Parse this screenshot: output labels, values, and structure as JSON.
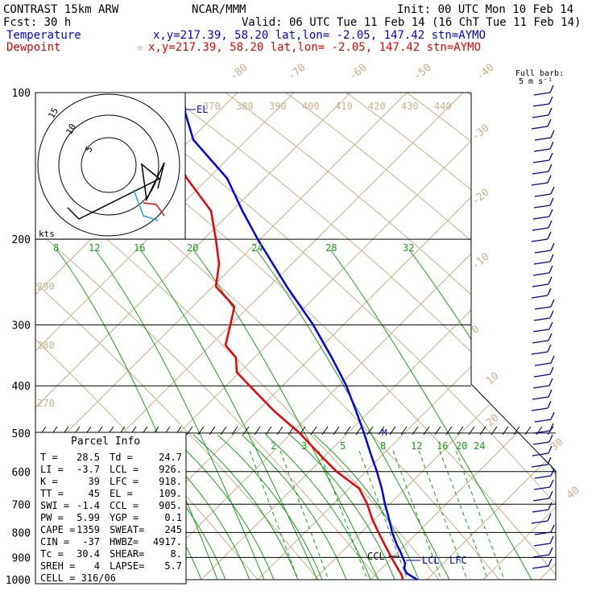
{
  "header": {
    "title": "CONTRAST 15km ARW",
    "center": "NCAR/MMM",
    "init": "Init: 00 UTC Mon 10 Feb 14",
    "fcst": "Fcst:   30 h",
    "valid": "Valid: 06 UTC Tue 11 Feb 14 (16 ChT Tue 11 Feb 14)",
    "temp_label": "Temperature",
    "temp_info": "x,y=217.39, 58.20    lat,lon= -2.05, 147.42   stn=AYMO",
    "dew_label": "Dewpoint",
    "dew_marker": "☆",
    "dew_info": "x,y=217.39, 58.20    lat,lon= -2.05, 147.42   stn=AYMO",
    "barb_label_1": "Full barb:",
    "barb_label_2": "5 m s⁻¹"
  },
  "colors": {
    "temperature": "#0000ee",
    "dewpoint": "#ee0000",
    "isotherm": "#c8b08c",
    "mixing_ratio": "#16a316",
    "parcel_wind": "#20a0e0"
  },
  "annotations": {
    "el": "EL",
    "ccl": "CCL",
    "lcl": "LCL",
    "lfc": "LFC",
    "m": "M",
    "hodo_units": "kts",
    "hodo_rings": [
      "15",
      "10",
      "5"
    ]
  },
  "axes": {
    "pressure_ticks": [
      "100",
      "200",
      "300",
      "400",
      "500",
      "600",
      "700",
      "800",
      "900",
      "1000"
    ],
    "isotherm_top": [
      "-80",
      "-70",
      "-60",
      "-50",
      "-40"
    ],
    "isotherm_right": [
      "-30",
      "-20",
      "-10",
      "0",
      "10",
      "20",
      "30",
      "40"
    ],
    "theta_top": [
      "370",
      "380",
      "390",
      "400",
      "410",
      "420",
      "430",
      "440"
    ],
    "theta_left": [
      "290",
      "280",
      "270"
    ],
    "mixing_upper": [
      "8",
      "12",
      "16",
      "20",
      "24",
      "28",
      "32"
    ],
    "mixing_lower": [
      "2",
      "3",
      "5",
      "8",
      "12",
      "16",
      "20",
      "24"
    ]
  },
  "parcel_info": {
    "title": "Parcel Info",
    "rows": [
      [
        "T   =",
        "28.5",
        "Td =",
        "24.7"
      ],
      [
        "LI  =",
        "-3.7",
        "LCL =",
        "926."
      ],
      [
        "K   =",
        "39",
        "LFC =",
        "918."
      ],
      [
        "TT  =",
        "45",
        "EL  =",
        "109."
      ],
      [
        "SWI =",
        "-1.4",
        "CCL =",
        "905."
      ],
      [
        "PW  =",
        "5.99",
        "YGP =",
        "0.1"
      ],
      [
        "CAPE =",
        "1359",
        "SWEAT=",
        "245"
      ],
      [
        "CIN =",
        "-37",
        "HWBZ=",
        "4917."
      ],
      [
        "Tc  =",
        "30.4",
        "SHEAR=",
        "8."
      ],
      [
        "SREH =",
        "4",
        "LAPSE=",
        "5.7"
      ]
    ],
    "cell": "CELL = 316/06"
  },
  "chart_data": {
    "type": "line",
    "title": "CONTRAST 15km ARW",
    "ylabel": "",
    "y_scale": "log-pressure (hPa)",
    "ylim": [
      1000,
      100
    ],
    "series": [
      {
        "name": "Temperature",
        "pressure": [
          1000,
          970,
          950,
          925,
          900,
          875,
          850,
          800,
          750,
          700,
          650,
          600,
          550,
          500,
          450,
          400,
          350,
          300,
          250,
          200,
          175,
          150,
          125,
          110,
          100
        ],
        "x": [
          518,
          505,
          502,
          503,
          500,
          497,
          493,
          487,
          483,
          478,
          474,
          468,
          460,
          452,
          442,
          430,
          412,
          389,
          356,
          320,
          301,
          282,
          240,
          230,
          228
        ]
      },
      {
        "name": "Dewpoint",
        "pressure": [
          1000,
          980,
          950,
          925,
          900,
          850,
          800,
          750,
          700,
          650,
          600,
          560,
          500,
          450,
          400,
          375,
          350,
          330,
          300,
          275,
          250,
          225,
          200,
          175,
          150,
          130,
          110,
          100
        ],
        "x": [
          500,
          499,
          494,
          490,
          486,
          478,
          470,
          462,
          456,
          446,
          418,
          400,
          372,
          340,
          310,
          294,
          293,
          280,
          286,
          291,
          268,
          272,
          268,
          262,
          232,
          212,
          226,
          228
        ]
      }
    ]
  }
}
